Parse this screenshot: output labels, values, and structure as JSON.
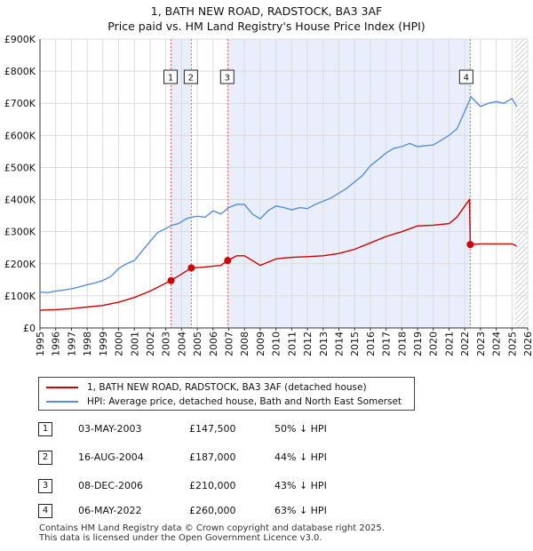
{
  "title_line1": "1, BATH NEW ROAD, RADSTOCK, BA3 3AF",
  "title_line2": "Price paid vs. HM Land Registry's House Price Index (HPI)",
  "colors": {
    "property": "#cc0000",
    "hpi": "#5b8fd4",
    "shade": "#e8eefb",
    "marker": "#cc0000",
    "grid": "#dcdcdc"
  },
  "legend": {
    "property_label": "1, BATH NEW ROAD, RADSTOCK, BA3 3AF (detached house)",
    "hpi_label": "HPI: Average price, detached house, Bath and North East Somerset"
  },
  "sales": [
    {
      "num": "1",
      "date": "03-MAY-2003",
      "price": "£147,500",
      "pct": "50% ↓ HPI"
    },
    {
      "num": "2",
      "date": "16-AUG-2004",
      "price": "£187,000",
      "pct": "44% ↓ HPI"
    },
    {
      "num": "3",
      "date": "08-DEC-2006",
      "price": "£210,000",
      "pct": "43% ↓ HPI"
    },
    {
      "num": "4",
      "date": "06-MAY-2022",
      "price": "£260,000",
      "pct": "63% ↓ HPI"
    }
  ],
  "footer_line1": "Contains HM Land Registry data © Crown copyright and database right 2025.",
  "footer_line2": "This data is licensed under the Open Government Licence v3.0.",
  "chart_data": {
    "type": "line",
    "title": "Price paid vs. HM Land Registry's House Price Index (HPI)",
    "xlabel": "",
    "ylabel": "",
    "xlim": [
      1995,
      2026
    ],
    "ylim": [
      0,
      900000
    ],
    "grid": true,
    "x_ticks": [
      1995,
      1996,
      1997,
      1998,
      1999,
      2000,
      2001,
      2002,
      2003,
      2004,
      2005,
      2006,
      2007,
      2008,
      2009,
      2010,
      2011,
      2012,
      2013,
      2014,
      2015,
      2016,
      2017,
      2018,
      2019,
      2020,
      2021,
      2022,
      2023,
      2024,
      2025,
      2026
    ],
    "y_ticks": [
      0,
      100000,
      200000,
      300000,
      400000,
      500000,
      600000,
      700000,
      800000,
      900000
    ],
    "y_tick_labels": [
      "£0",
      "£100K",
      "£200K",
      "£300K",
      "£400K",
      "£500K",
      "£600K",
      "£700K",
      "£800K",
      "£900K"
    ],
    "shaded_ranges": [
      [
        2003.33,
        2004.62
      ],
      [
        2006.93,
        2022.35
      ]
    ],
    "future_hatch_from": 2025.2,
    "series": [
      {
        "name": "HPI: Average price, detached house, Bath and North East Somerset",
        "x": [
          1995,
          1995.5,
          1996,
          1996.5,
          1997,
          1997.5,
          1998,
          1998.5,
          1999,
          1999.5,
          2000,
          2000.5,
          2001,
          2001.5,
          2002,
          2002.5,
          2003,
          2003.4,
          2003.8,
          2004.3,
          2004.6,
          2005,
          2005.5,
          2006,
          2006.5,
          2007,
          2007.5,
          2008,
          2008.5,
          2009,
          2009.5,
          2010,
          2010.5,
          2011,
          2011.5,
          2012,
          2012.5,
          2013,
          2013.5,
          2014,
          2014.5,
          2015,
          2015.5,
          2016,
          2016.5,
          2017,
          2017.5,
          2018,
          2018.5,
          2019,
          2019.5,
          2020,
          2020.5,
          2021,
          2021.5,
          2022,
          2022.4,
          2022.8,
          2023,
          2023.5,
          2024,
          2024.5,
          2025,
          2025.3
        ],
        "values": [
          112000,
          110000,
          115000,
          118000,
          122000,
          128000,
          135000,
          140000,
          148000,
          160000,
          185000,
          200000,
          210000,
          240000,
          270000,
          298000,
          310000,
          320000,
          325000,
          340000,
          345000,
          348000,
          345000,
          365000,
          355000,
          375000,
          385000,
          385000,
          355000,
          340000,
          365000,
          380000,
          375000,
          368000,
          375000,
          372000,
          385000,
          395000,
          405000,
          420000,
          435000,
          455000,
          475000,
          505000,
          525000,
          545000,
          560000,
          565000,
          575000,
          565000,
          568000,
          570000,
          585000,
          600000,
          620000,
          675000,
          720000,
          700000,
          690000,
          700000,
          705000,
          700000,
          715000,
          690000
        ]
      },
      {
        "name": "1, BATH NEW ROAD, RADSTOCK, BA3 3AF (detached house)",
        "x": [
          1995,
          1996,
          1997,
          1997.5,
          1998,
          1999,
          2000,
          2001,
          2002,
          2003.33,
          2004.62,
          2005.5,
          2006.5,
          2006.93,
          2007.5,
          2008,
          2008.5,
          2009,
          2009.5,
          2010,
          2010.5,
          2011,
          2012,
          2013,
          2014,
          2015,
          2016,
          2017,
          2018,
          2019,
          2020,
          2021,
          2021.5,
          2022,
          2022.3,
          2022.35,
          2023,
          2024,
          2025,
          2025.3
        ],
        "values": [
          55000,
          57000,
          60000,
          63000,
          65000,
          70000,
          80000,
          95000,
          115000,
          147500,
          187000,
          190000,
          195000,
          210000,
          225000,
          225000,
          210000,
          195000,
          205000,
          215000,
          218000,
          220000,
          222000,
          225000,
          232000,
          245000,
          265000,
          285000,
          300000,
          318000,
          320000,
          325000,
          345000,
          380000,
          400000,
          260000,
          262000,
          262000,
          262000,
          255000
        ]
      }
    ],
    "sale_markers": [
      {
        "label": "1",
        "x": 2003.33,
        "y": 147500
      },
      {
        "label": "2",
        "x": 2004.62,
        "y": 187000
      },
      {
        "label": "3",
        "x": 2006.93,
        "y": 210000
      },
      {
        "label": "4",
        "x": 2022.35,
        "y": 260000
      }
    ]
  }
}
